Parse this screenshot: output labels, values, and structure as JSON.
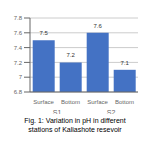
{
  "chart_data": {
    "type": "bar",
    "title": "Fig. 1: Variation in pH in different\nstations of Kaliashote resevoir",
    "categories": [
      "Surface",
      "Bottom",
      "Surface",
      "Bottom"
    ],
    "values": [
      7.5,
      7.2,
      7.6,
      7.1
    ],
    "annotations": [
      "S1",
      "S2"
    ],
    "color": "#4472C4",
    "ylim": [
      6.8,
      7.8
    ],
    "yticks": [
      6.8,
      7.0,
      7.2,
      7.4,
      7.6,
      7.8
    ],
    "grid": true,
    "data_labels": true
  }
}
